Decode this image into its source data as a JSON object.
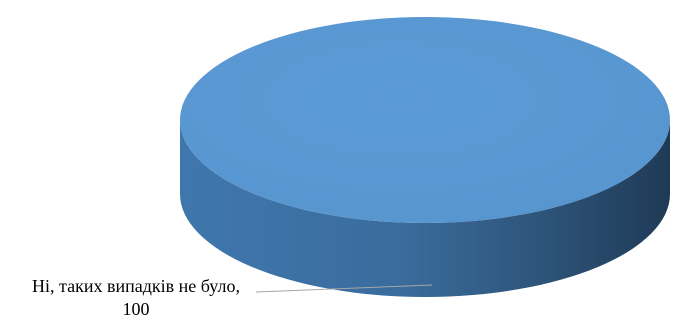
{
  "chart_data": {
    "type": "pie3d",
    "values": [
      100
    ],
    "value_labels": [
      "Ні, таких випадків не було, 100"
    ],
    "colors": [
      "#5b9bd5"
    ]
  }
}
